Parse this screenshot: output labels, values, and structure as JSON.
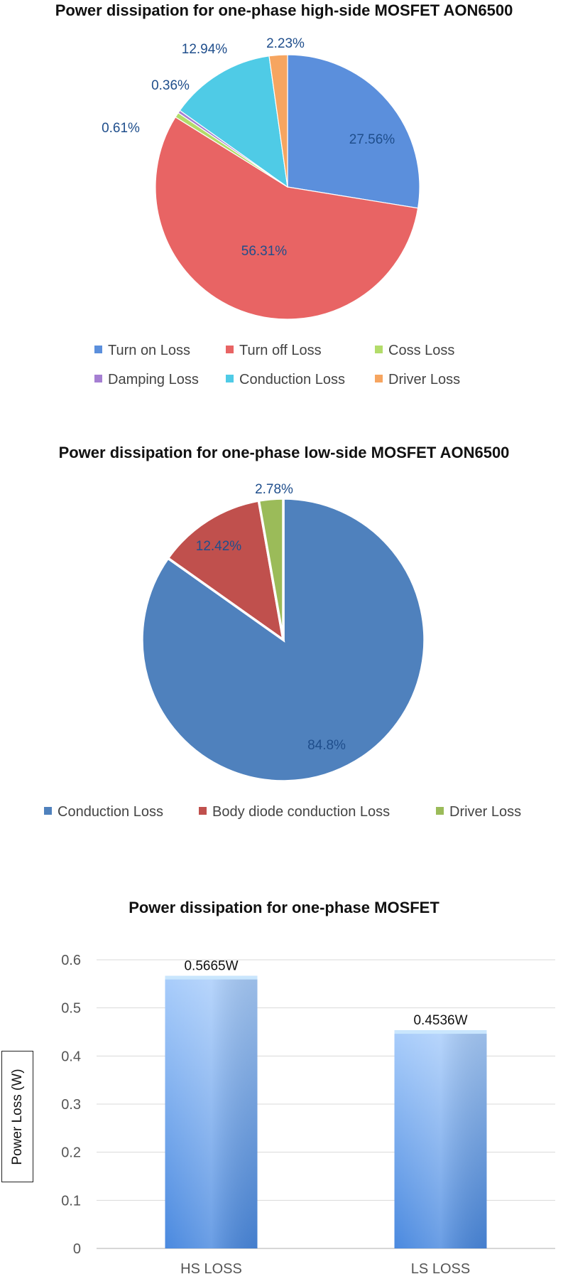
{
  "chart_data": [
    {
      "type": "pie",
      "title": "Power dissipation for one-phase high-side MOSFET AON6500",
      "slices": [
        {
          "name": "Turn on Loss",
          "value": 27.56,
          "label": "27.56%",
          "color": "#5b8fdc"
        },
        {
          "name": "Turn off Loss",
          "value": 56.31,
          "label": "56.31%",
          "color": "#e86464"
        },
        {
          "name": "Coss Loss",
          "value": 0.61,
          "label": "0.61%",
          "color": "#b3dc6a"
        },
        {
          "name": "Damping Loss",
          "value": 0.36,
          "label": "0.36%",
          "color": "#a57fd2"
        },
        {
          "name": "Conduction Loss",
          "value": 12.94,
          "label": "12.94%",
          "color": "#4fcbe6"
        },
        {
          "name": "Driver Loss",
          "value": 2.23,
          "label": "2.23%",
          "color": "#f6a560"
        }
      ],
      "legend": "bottom"
    },
    {
      "type": "pie",
      "title": "Power dissipation for one-phase low-side MOSFET AON6500",
      "slices": [
        {
          "name": "Conduction Loss",
          "value": 84.8,
          "label": "84.8%",
          "color": "#4f81bd"
        },
        {
          "name": "Body diode conduction Loss",
          "value": 12.42,
          "label": "12.42%",
          "color": "#c0504d"
        },
        {
          "name": "Driver Loss",
          "value": 2.78,
          "label": "2.78%",
          "color": "#9bbb59"
        }
      ],
      "legend": "bottom"
    },
    {
      "type": "bar",
      "title": "Power dissipation for one-phase MOSFET",
      "categories": [
        "HS LOSS",
        "LS LOSS"
      ],
      "values": [
        0.5665,
        0.4536
      ],
      "value_labels": [
        "0.5665W",
        "0.4536W"
      ],
      "ylabel": "Power Loss (W)",
      "ylim": [
        0,
        0.6
      ],
      "yticks": [
        "0",
        "0.1",
        "0.2",
        "0.3",
        "0.4",
        "0.5",
        "0.6"
      ],
      "grid": true,
      "bar_color": "#6aa2f0"
    }
  ]
}
